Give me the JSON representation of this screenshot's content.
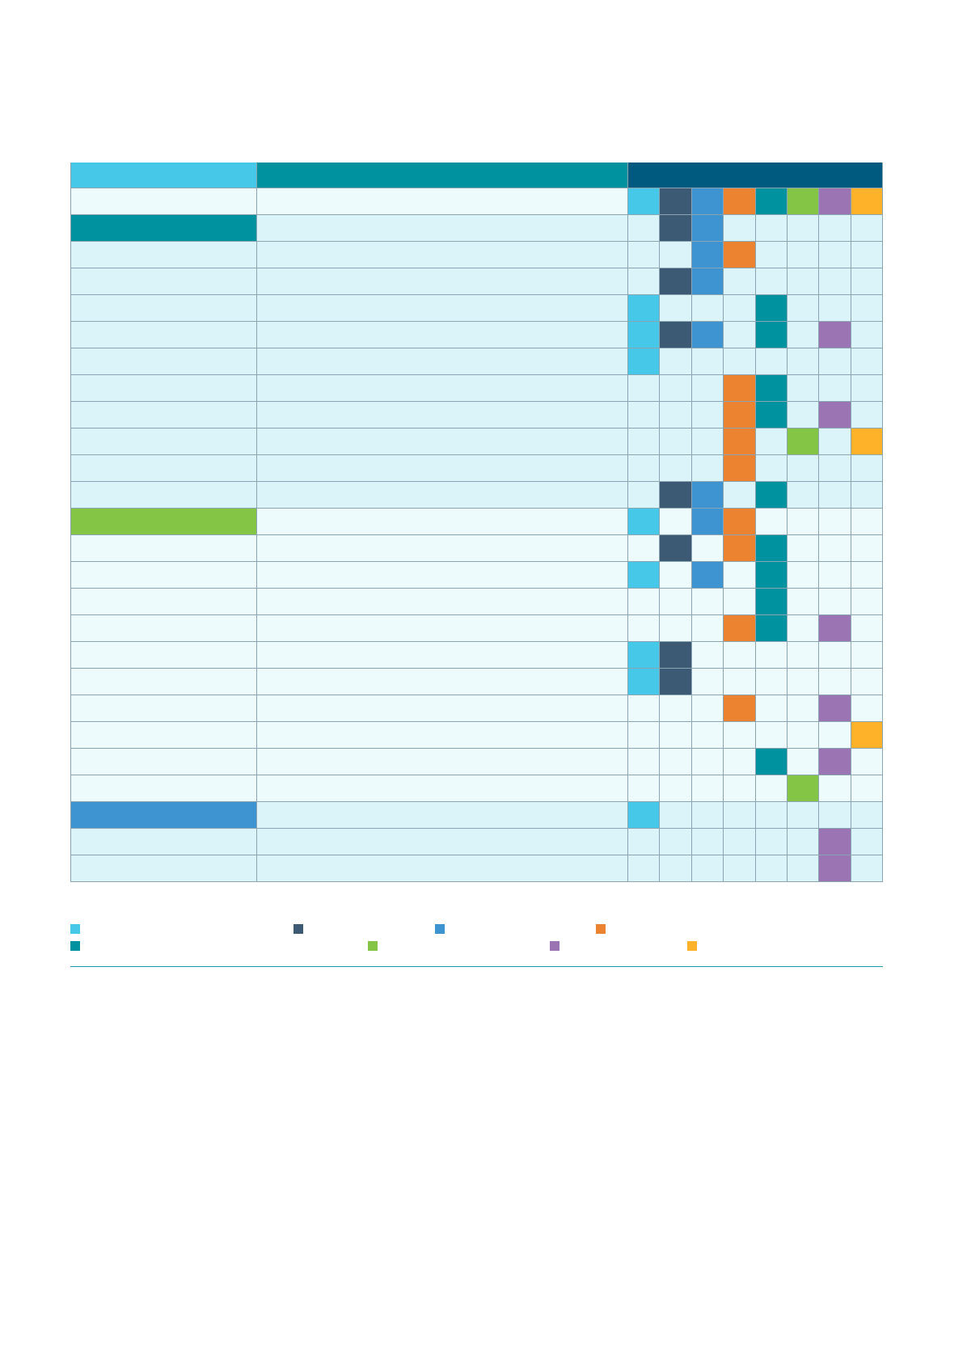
{
  "colors": {
    "c1": "#46c8e8",
    "c2": "#3c5a73",
    "c3": "#3d94d0",
    "c4": "#ec8330",
    "c5": "#00939f",
    "c6": "#84c545",
    "c7": "#9a74b3",
    "c8": "#fdb22a",
    "header_band": "#005a80",
    "pale": "#dbf4f9",
    "paler": "#edfbfc"
  },
  "header": {
    "col1_color": "c1",
    "col2_color": "c5",
    "matrix_color": "header_band",
    "swatches": [
      "c1",
      "c2",
      "c3",
      "c4",
      "c5",
      "c6",
      "c7",
      "c8"
    ]
  },
  "rows": [
    {
      "c1": "c5",
      "c2": "pale",
      "cells": [
        0,
        1,
        1,
        0,
        0,
        0,
        0,
        0
      ]
    },
    {
      "c1": "pale",
      "c2": "pale",
      "cells": [
        0,
        0,
        1,
        1,
        0,
        0,
        0,
        0
      ]
    },
    {
      "c1": "pale",
      "c2": "pale",
      "cells": [
        0,
        1,
        1,
        0,
        0,
        0,
        0,
        0
      ]
    },
    {
      "c1": "pale",
      "c2": "pale",
      "cells": [
        1,
        0,
        0,
        0,
        1,
        0,
        0,
        0
      ]
    },
    {
      "c1": "pale",
      "c2": "pale",
      "cells": [
        1,
        1,
        1,
        0,
        1,
        0,
        1,
        0
      ]
    },
    {
      "c1": "pale",
      "c2": "pale",
      "cells": [
        1,
        0,
        0,
        0,
        0,
        0,
        0,
        0
      ]
    },
    {
      "c1": "pale",
      "c2": "pale",
      "cells": [
        0,
        0,
        0,
        1,
        1,
        0,
        0,
        0
      ]
    },
    {
      "c1": "pale",
      "c2": "pale",
      "cells": [
        0,
        0,
        0,
        1,
        1,
        0,
        1,
        0
      ]
    },
    {
      "c1": "pale",
      "c2": "pale",
      "cells": [
        0,
        0,
        0,
        1,
        0,
        1,
        0,
        1
      ]
    },
    {
      "c1": "pale",
      "c2": "pale",
      "cells": [
        0,
        0,
        0,
        1,
        0,
        0,
        0,
        0
      ]
    },
    {
      "c1": "pale",
      "c2": "pale",
      "cells": [
        0,
        1,
        1,
        0,
        1,
        0,
        0,
        0
      ]
    },
    {
      "c1": "c6",
      "c2": "paler",
      "cells": [
        1,
        0,
        1,
        1,
        0,
        0,
        0,
        0
      ]
    },
    {
      "c1": "paler",
      "c2": "paler",
      "cells": [
        0,
        1,
        0,
        1,
        1,
        0,
        0,
        0
      ]
    },
    {
      "c1": "paler",
      "c2": "paler",
      "cells": [
        1,
        0,
        1,
        0,
        1,
        0,
        0,
        0
      ]
    },
    {
      "c1": "paler",
      "c2": "paler",
      "cells": [
        0,
        0,
        0,
        0,
        1,
        0,
        0,
        0
      ]
    },
    {
      "c1": "paler",
      "c2": "paler",
      "cells": [
        0,
        0,
        0,
        1,
        1,
        0,
        1,
        0
      ]
    },
    {
      "c1": "paler",
      "c2": "paler",
      "cells": [
        1,
        1,
        0,
        0,
        0,
        0,
        0,
        0
      ]
    },
    {
      "c1": "paler",
      "c2": "paler",
      "cells": [
        1,
        1,
        0,
        0,
        0,
        0,
        0,
        0
      ]
    },
    {
      "c1": "paler",
      "c2": "paler",
      "cells": [
        0,
        0,
        0,
        1,
        0,
        0,
        1,
        0
      ]
    },
    {
      "c1": "paler",
      "c2": "paler",
      "cells": [
        0,
        0,
        0,
        0,
        0,
        0,
        0,
        1
      ]
    },
    {
      "c1": "paler",
      "c2": "paler",
      "cells": [
        0,
        0,
        0,
        0,
        1,
        0,
        1,
        0
      ]
    },
    {
      "c1": "paler",
      "c2": "paler",
      "cells": [
        0,
        0,
        0,
        0,
        0,
        1,
        0,
        0
      ]
    },
    {
      "c1": "c3",
      "c2": "pale",
      "cells": [
        1,
        0,
        0,
        0,
        0,
        0,
        0,
        0
      ]
    },
    {
      "c1": "pale",
      "c2": "pale",
      "cells": [
        0,
        0,
        0,
        0,
        0,
        0,
        1,
        0
      ]
    },
    {
      "c1": "pale",
      "c2": "pale",
      "cells": [
        0,
        0,
        0,
        0,
        0,
        0,
        1,
        0
      ]
    }
  ],
  "legend": [
    {
      "color": "c1",
      "label": ""
    },
    {
      "color": "c2",
      "label": ""
    },
    {
      "color": "c3",
      "label": ""
    },
    {
      "color": "c4",
      "label": ""
    },
    {
      "color": "c5",
      "label": ""
    },
    {
      "color": "c6",
      "label": ""
    },
    {
      "color": "c7",
      "label": ""
    },
    {
      "color": "c8",
      "label": ""
    }
  ]
}
